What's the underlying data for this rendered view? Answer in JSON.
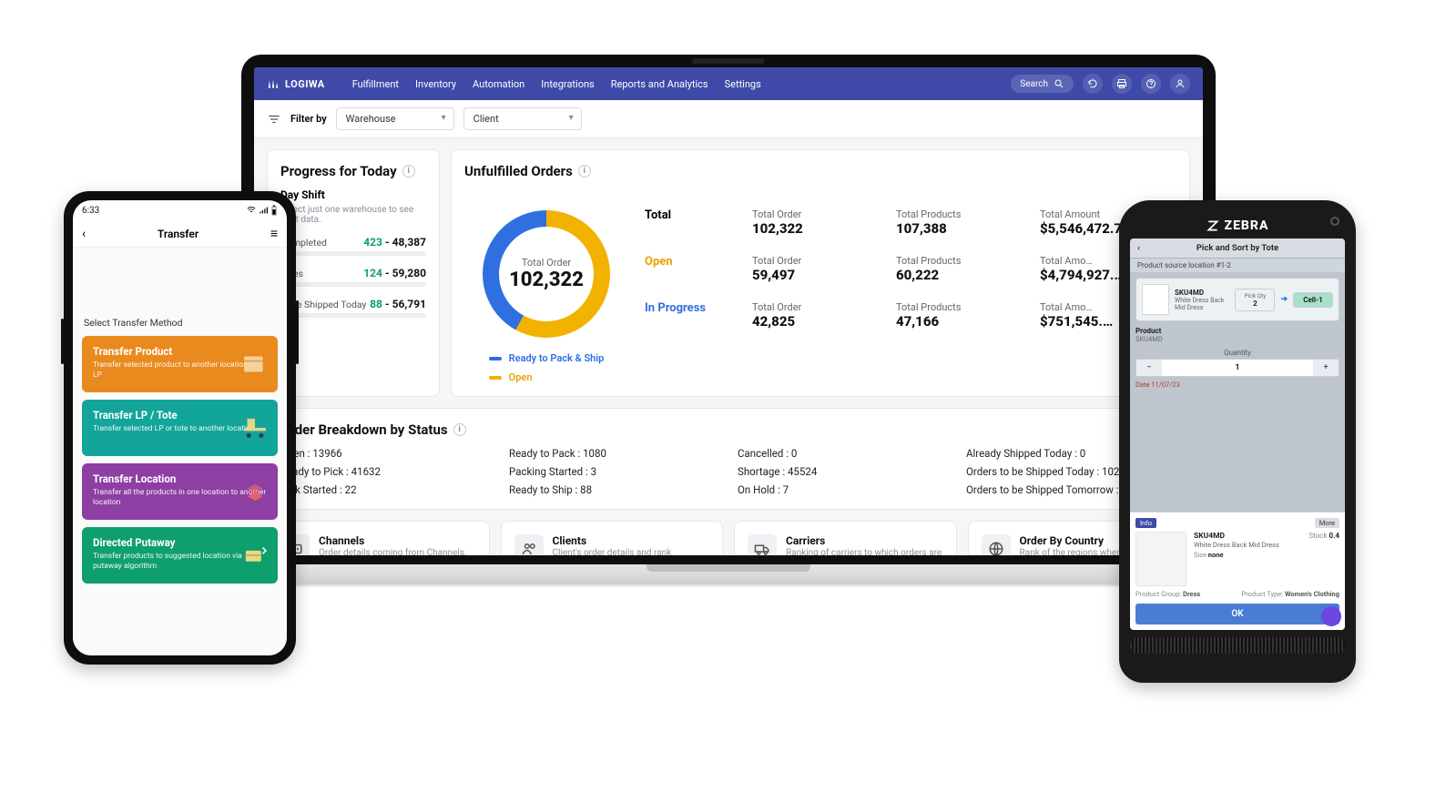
{
  "colors": {
    "header_bg": "#3f4aa8",
    "accent_yellow": "#f2b200",
    "accent_blue": "#2f6fe0",
    "green": "#0aa06e",
    "card_border": "#e5e7eb",
    "muted": "#8a8f99"
  },
  "laptop": {
    "brand": "LOGIWA",
    "nav": [
      "Fulfillment",
      "Inventory",
      "Automation",
      "Integrations",
      "Reports and Analytics",
      "Settings"
    ],
    "search_label": "Search",
    "filter": {
      "label": "Filter by",
      "warehouse": "Warehouse",
      "client": "Client"
    },
    "progress": {
      "title": "Progress for Today",
      "shift": "Day Shift",
      "note": "Select just one warehouse to see shift data.",
      "rows": [
        {
          "label": "Completed",
          "done": "423",
          "total": "48,387",
          "pct": 3
        },
        {
          "label": "Lines",
          "done": "124",
          "total": "59,280",
          "pct": 2
        },
        {
          "label": "to be Shipped Today",
          "done": "88",
          "total": "56,791",
          "pct": 2
        }
      ]
    },
    "unfulfilled": {
      "title": "Unfulfilled Orders",
      "donut": {
        "label": "Total Order",
        "value": "102,322",
        "open_pct": 58,
        "progress_pct": 42,
        "open_color": "#f2b200",
        "progress_color": "#2f6fe0"
      },
      "legend": [
        {
          "label": "Ready to Pack & Ship",
          "color": "#2f6fe0"
        },
        {
          "label": "Open",
          "color": "#f2b200"
        }
      ],
      "rows": [
        {
          "name": "Total",
          "order": "102,322",
          "products": "107,388",
          "amount": "$5,546,472.72"
        },
        {
          "name": "Open",
          "order": "59,497",
          "products": "60,222",
          "amount": "$4,794,927.…"
        },
        {
          "name": "In Progress",
          "order": "42,825",
          "products": "47,166",
          "amount": "$751,545.…"
        }
      ],
      "col_labels": {
        "order": "Total Order",
        "products": "Total Products",
        "amount": "Total Amount",
        "amount_trunc": "Total Amo…"
      }
    },
    "breakdown": {
      "title": "Order Breakdown by Status",
      "items": [
        "Open : 13966",
        "Ready to Pick : 41632",
        "Pick Started : 22",
        "Ready to Pack : 1080",
        "Packing Started : 3",
        "Ready to Ship : 88",
        "Cancelled : 0",
        "Shortage : 45524",
        "On Hold : 7",
        "Already Shipped Today : 0",
        "Orders to be Shipped Today : 102273",
        "Orders to be Shipped Tomorrow : 1"
      ]
    },
    "minis": [
      {
        "title": "Channels",
        "sub": "Order details coming from Channels."
      },
      {
        "title": "Clients",
        "sub": "Client's order details and rank"
      },
      {
        "title": "Carriers",
        "sub": "Ranking of carriers to which orders are shipped"
      },
      {
        "title": "Order By Country",
        "sub": "Rank of the regions where orders are shipped"
      }
    ]
  },
  "phone": {
    "time": "6:33",
    "title": "Transfer",
    "select_label": "Select Transfer Method",
    "cards": [
      {
        "title": "Transfer Product",
        "sub": "Transfer selected product to another location or LP",
        "bg": "#e98a1f"
      },
      {
        "title": "Transfer LP / Tote",
        "sub": "Transfer selected LP or tote to another location",
        "bg": "#13a59a"
      },
      {
        "title": "Transfer Location",
        "sub": "Transfer all the products in one location to another location",
        "bg": "#8e3fa3"
      },
      {
        "title": "Directed Putaway",
        "sub": "Transfer products to suggested location via putaway algorithm",
        "bg": "#0f9f6f"
      }
    ]
  },
  "handheld": {
    "brand": "ZEBRA",
    "title": "Pick and Sort by Tote",
    "sub": "Product source location #1-2",
    "product_code": "SKU4MD",
    "pickqty_label": "Pick Qty",
    "pickqty": "2",
    "cell_label": "Cell-1",
    "product_label": "Product",
    "qty_label": "Quantity",
    "qty": "1",
    "date_prefix": "Date",
    "date": "11/07/23",
    "badge_left": "Info",
    "badge_right": "More",
    "prod_name": "SKU4MD",
    "prod_desc": "White Dress Back Mid Dress",
    "stock_label": "Stock",
    "stock_val": "0.4",
    "size_label": "Size",
    "size_val": "none",
    "group_label": "Product Group",
    "group_val": "Dress",
    "type_label": "Product Type",
    "type_val": "Women's Clothing",
    "ok": "OK"
  }
}
